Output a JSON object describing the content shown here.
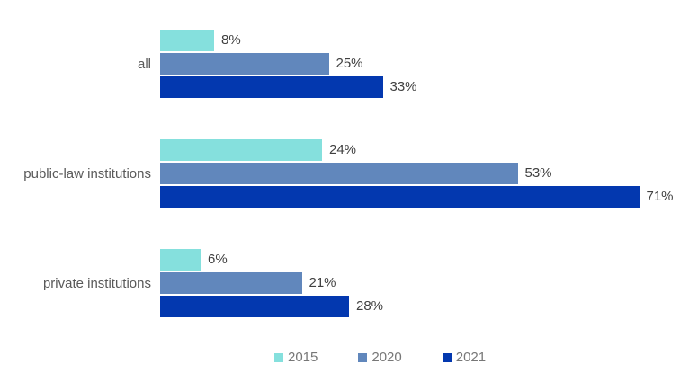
{
  "chart_data": {
    "type": "bar",
    "orientation": "horizontal",
    "title": "",
    "xlabel": "",
    "ylabel": "",
    "categories": [
      "all",
      "public-law institutions",
      "private institutions"
    ],
    "series": [
      {
        "name": "2015",
        "color": "#85e0dd",
        "values": [
          8,
          24,
          6
        ],
        "labels": [
          "8%",
          "24%",
          "6%"
        ]
      },
      {
        "name": "2020",
        "color": "#6187bc",
        "values": [
          25,
          53,
          21
        ],
        "labels": [
          "25%",
          "53%",
          "21%"
        ]
      },
      {
        "name": "2021",
        "color": "#0338af",
        "values": [
          33,
          71,
          28
        ],
        "labels": [
          "33%",
          "71%",
          "28%"
        ]
      }
    ],
    "value_suffix": "%",
    "xlim": [
      0,
      79
    ],
    "grid": false,
    "data_labels": true,
    "legend_position": "bottom",
    "legend": [
      "2015",
      "2020",
      "2021"
    ]
  },
  "colors": {
    "background": "#ffffff",
    "category_label": "#595959",
    "value_label": "#404040",
    "legend_label": "#777777"
  }
}
